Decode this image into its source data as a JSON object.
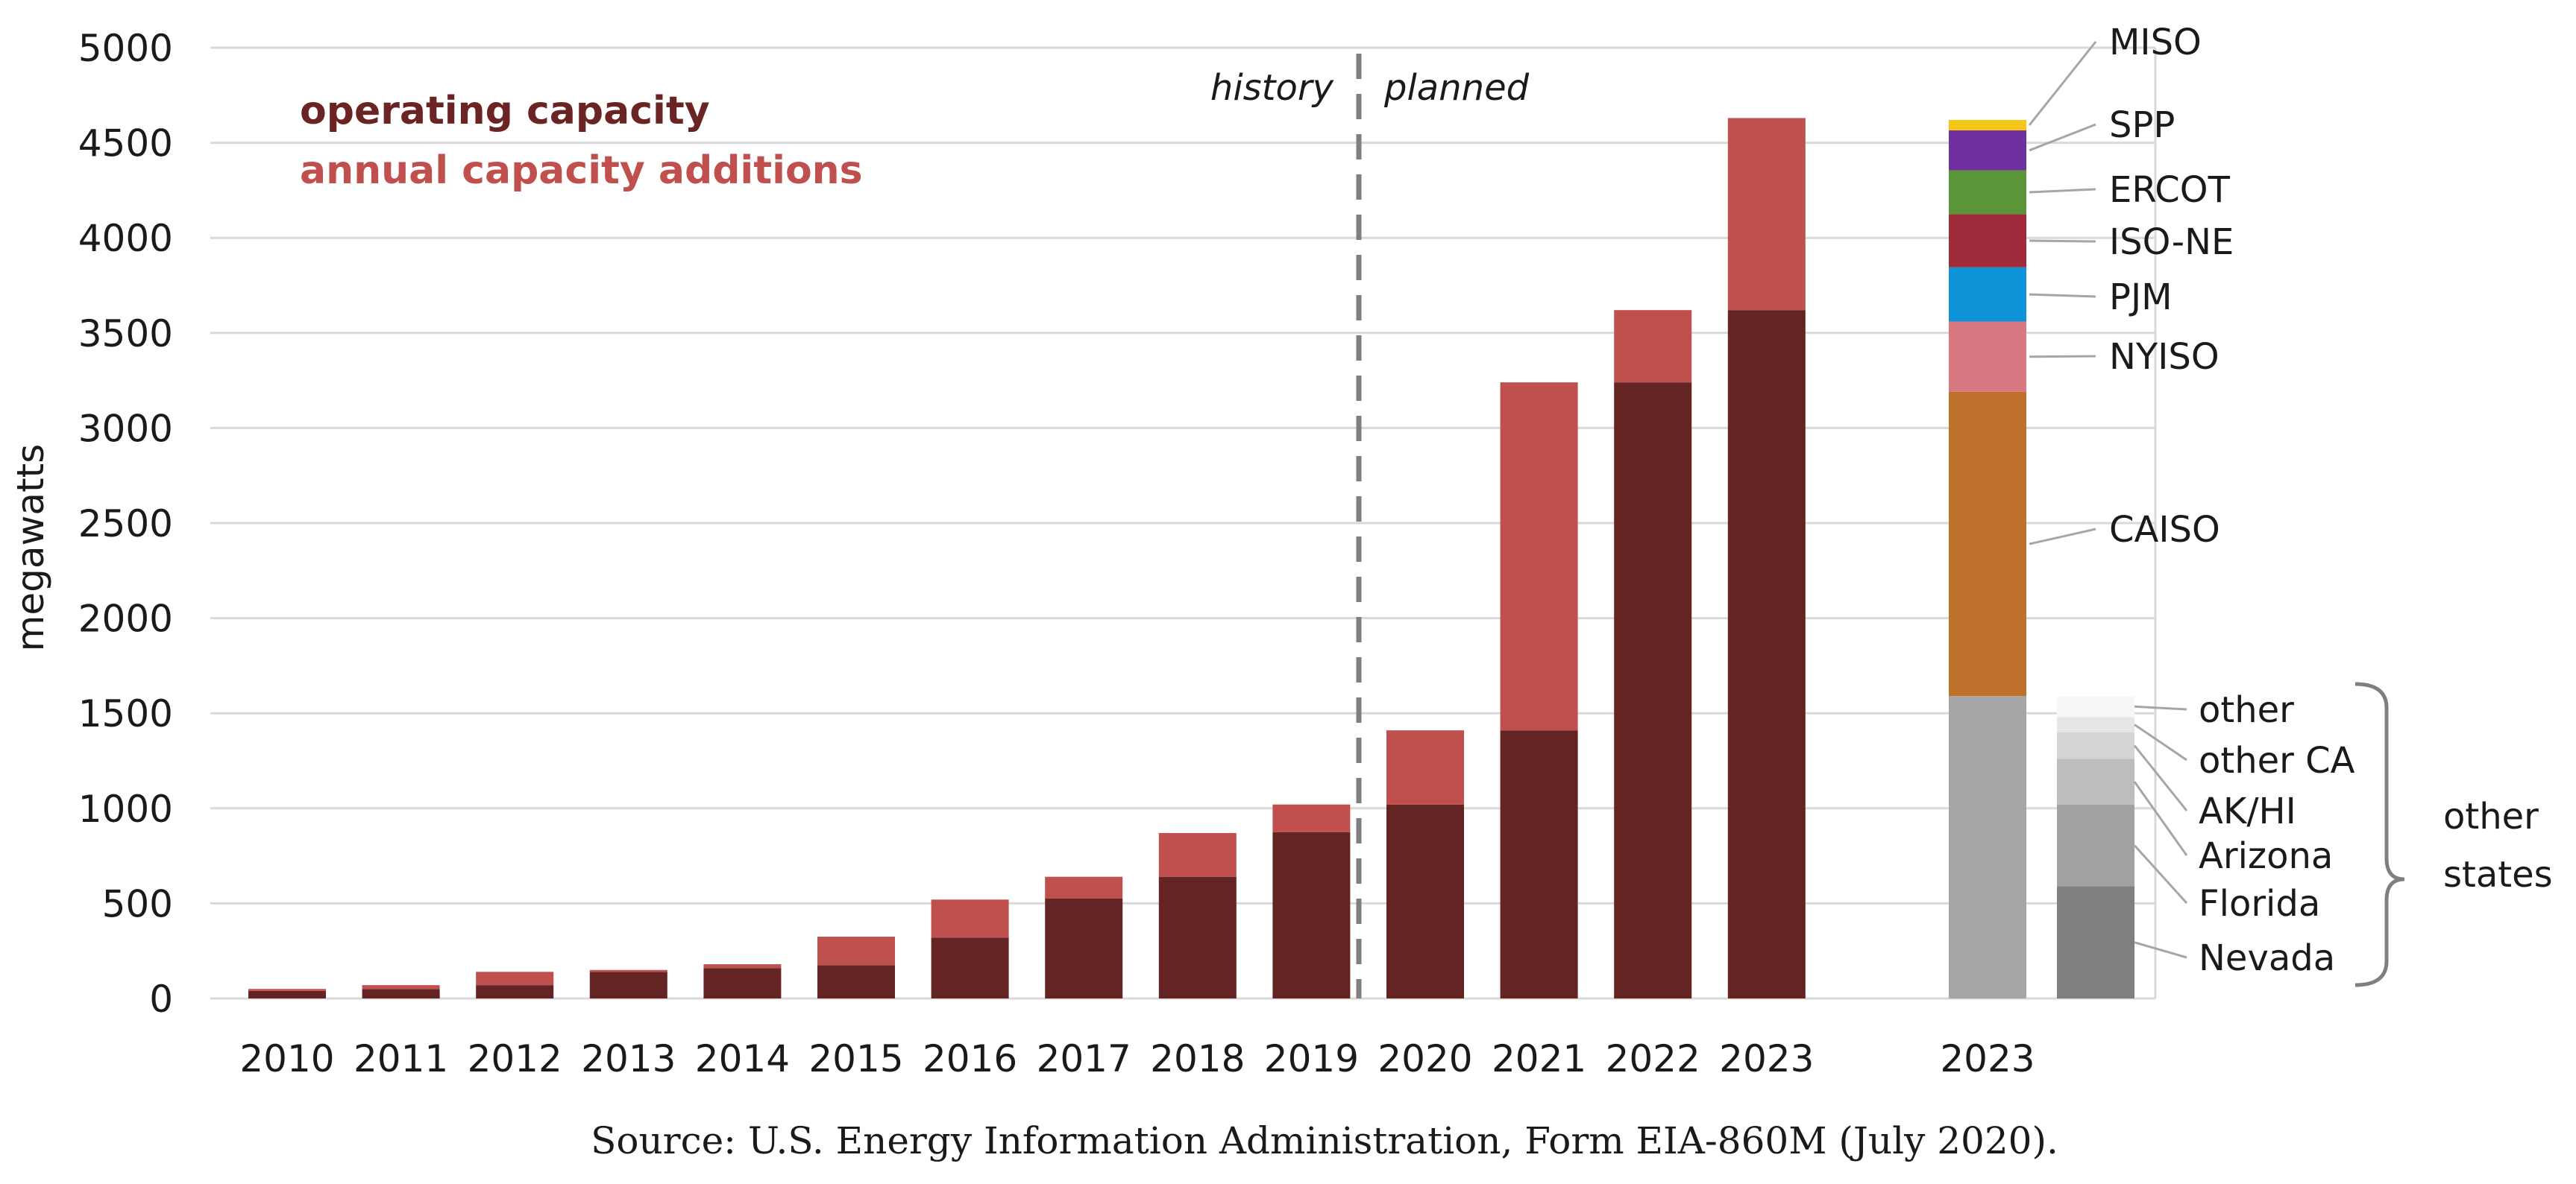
{
  "chart_data": {
    "type": "bar",
    "ylabel": "megawatts",
    "ylim": [
      0,
      5000
    ],
    "yticks": [
      "0",
      "500",
      "1000",
      "1500",
      "2000",
      "2500",
      "3000",
      "3500",
      "4000",
      "4500",
      "5000"
    ],
    "ytick_values": [
      0,
      500,
      1000,
      1500,
      2000,
      2500,
      3000,
      3500,
      4000,
      4500,
      5000
    ],
    "categories": [
      "2010",
      "2011",
      "2012",
      "2013",
      "2014",
      "2015",
      "2016",
      "2017",
      "2018",
      "2019",
      "2020",
      "2021",
      "2022",
      "2023"
    ],
    "series": [
      {
        "name": "operating capacity",
        "color": "#632423",
        "values": [
          40,
          50,
          70,
          140,
          160,
          175,
          320,
          525,
          640,
          875,
          1020,
          1410,
          3240,
          3620
        ]
      },
      {
        "name": "annual capacity additions",
        "color": "#c0504d",
        "values": [
          10,
          20,
          70,
          10,
          20,
          150,
          200,
          115,
          230,
          145,
          390,
          1830,
          380,
          1010
        ]
      }
    ],
    "legend": [
      "operating capacity",
      "annual capacity additions"
    ],
    "annotations": {
      "divider_left": "history",
      "divider_right": "planned"
    },
    "breakdown_bar": {
      "category": "2023",
      "segments": [
        {
          "name": "other states",
          "value": 1590,
          "color": "#a6a6a6"
        },
        {
          "name": "CAISO",
          "value": 1600,
          "color": "#be712a"
        },
        {
          "name": "NYISO",
          "value": 370,
          "color": "#d97880"
        },
        {
          "name": "PJM",
          "value": 285,
          "color": "#0f93d8"
        },
        {
          "name": "ISO-NE",
          "value": 280,
          "color": "#a02b3a"
        },
        {
          "name": "ERCOT",
          "value": 230,
          "color": "#5a9638"
        },
        {
          "name": "SPP",
          "value": 210,
          "color": "#7030a0"
        },
        {
          "name": "MISO",
          "value": 55,
          "color": "#f5c518"
        }
      ]
    },
    "other_states_bar": {
      "group_label": [
        "other",
        "states"
      ],
      "segments": [
        {
          "name": "Nevada",
          "value": 590,
          "color": "#7f7f7f"
        },
        {
          "name": "Florida",
          "value": 430,
          "color": "#a1a1a1"
        },
        {
          "name": "Arizona",
          "value": 240,
          "color": "#bdbdbd"
        },
        {
          "name": "AK/HI",
          "value": 140,
          "color": "#d4d4d4"
        },
        {
          "name": "other CA",
          "value": 80,
          "color": "#e6e6e6"
        },
        {
          "name": "other",
          "value": 110,
          "color": "#f7f7f7"
        }
      ]
    }
  },
  "source_note": "Source: U.S. Energy Information Administration, Form EIA-860M (July 2020)."
}
